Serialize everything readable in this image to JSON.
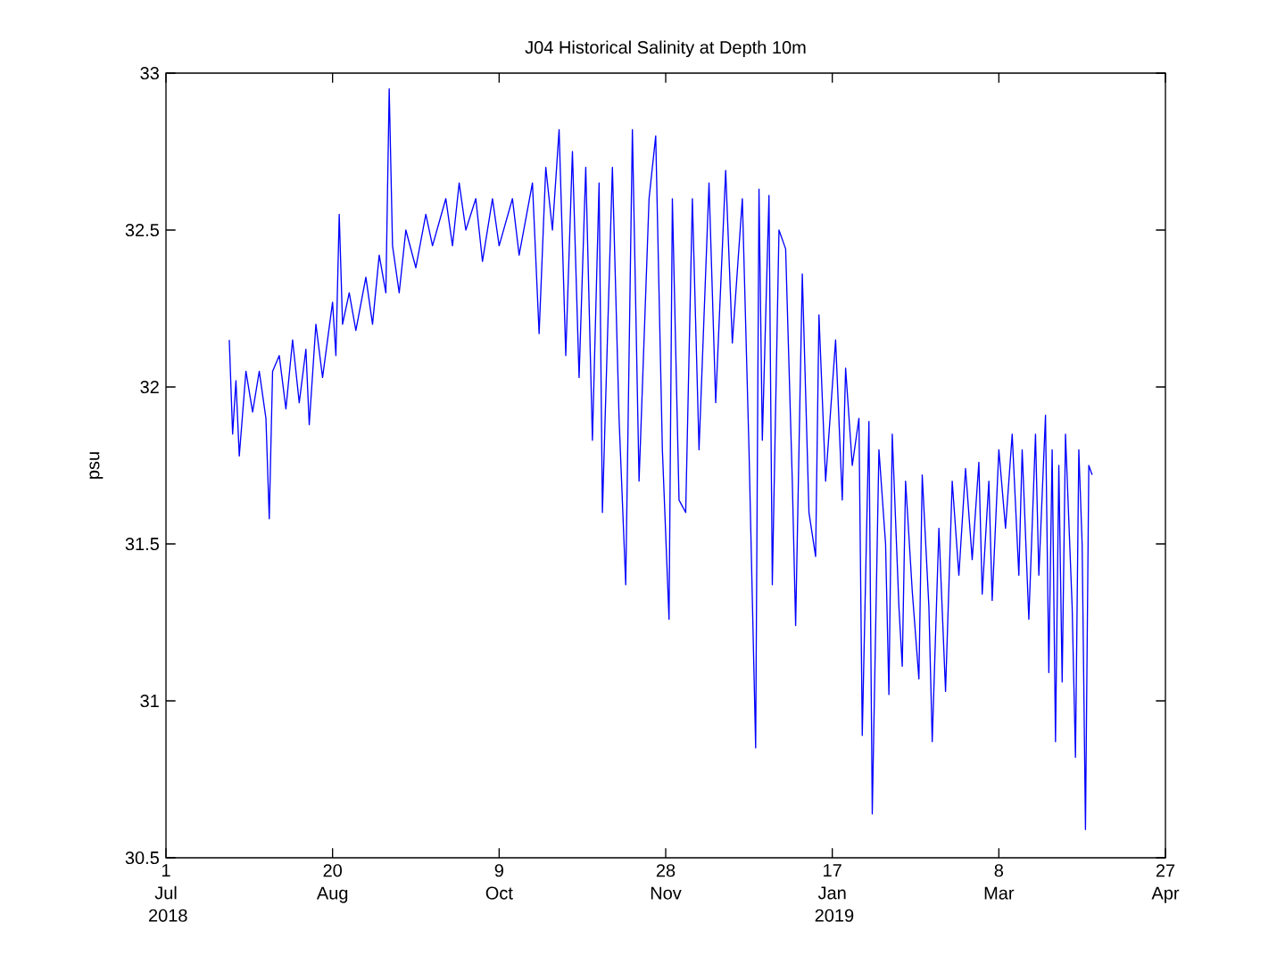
{
  "chart_data": {
    "type": "line",
    "title": "J04 Historical Salinity at Depth 10m",
    "ylabel": "psu",
    "xlim": [
      "2018-07-01",
      "2019-04-27"
    ],
    "xticks": [
      {
        "value": "2018-07-01",
        "label": "1 Jul 2018"
      },
      {
        "value": "2018-08-20",
        "label": "20 Aug"
      },
      {
        "value": "2018-10-09",
        "label": "9 Oct"
      },
      {
        "value": "2018-11-28",
        "label": "28 Nov"
      },
      {
        "value": "2019-01-17",
        "label": "17 Jan 2019"
      },
      {
        "value": "2019-03-08",
        "label": "8 Mar"
      },
      {
        "value": "2019-04-27",
        "label": "27 Apr"
      }
    ],
    "ylim": [
      30.5,
      33
    ],
    "yticks": [
      30.5,
      31,
      31.5,
      32,
      32.5,
      33
    ],
    "x": [
      "2018-07-20",
      "2018-07-21",
      "2018-07-22",
      "2018-07-23",
      "2018-07-25",
      "2018-07-27",
      "2018-07-29",
      "2018-07-31",
      "2018-08-01",
      "2018-08-02",
      "2018-08-04",
      "2018-08-06",
      "2018-08-08",
      "2018-08-10",
      "2018-08-12",
      "2018-08-13",
      "2018-08-15",
      "2018-08-17",
      "2018-08-20",
      "2018-08-21",
      "2018-08-22",
      "2018-08-23",
      "2018-08-25",
      "2018-08-27",
      "2018-08-30",
      "2018-09-01",
      "2018-09-03",
      "2018-09-05",
      "2018-09-06",
      "2018-09-07",
      "2018-09-09",
      "2018-09-11",
      "2018-09-14",
      "2018-09-17",
      "2018-09-19",
      "2018-09-23",
      "2018-09-25",
      "2018-09-27",
      "2018-09-29",
      "2018-10-02",
      "2018-10-04",
      "2018-10-07",
      "2018-10-09",
      "2018-10-13",
      "2018-10-15",
      "2018-10-19",
      "2018-10-21",
      "2018-10-23",
      "2018-10-25",
      "2018-10-27",
      "2018-10-29",
      "2018-10-31",
      "2018-11-02",
      "2018-11-04",
      "2018-11-06",
      "2018-11-08",
      "2018-11-09",
      "2018-11-12",
      "2018-11-14",
      "2018-11-16",
      "2018-11-18",
      "2018-11-20",
      "2018-11-23",
      "2018-11-25",
      "2018-11-27",
      "2018-11-29",
      "2018-11-30",
      "2018-12-02",
      "2018-12-04",
      "2018-12-06",
      "2018-12-08",
      "2018-12-11",
      "2018-12-13",
      "2018-12-16",
      "2018-12-18",
      "2018-12-21",
      "2018-12-23",
      "2018-12-25",
      "2018-12-26",
      "2018-12-27",
      "2018-12-29",
      "2018-12-30",
      "2019-01-01",
      "2019-01-03",
      "2019-01-05",
      "2019-01-06",
      "2019-01-08",
      "2019-01-10",
      "2019-01-12",
      "2019-01-13",
      "2019-01-15",
      "2019-01-18",
      "2019-01-20",
      "2019-01-21",
      "2019-01-23",
      "2019-01-25",
      "2019-01-26",
      "2019-01-28",
      "2019-01-29",
      "2019-01-31",
      "2019-02-02",
      "2019-02-03",
      "2019-02-04",
      "2019-02-06",
      "2019-02-07",
      "2019-02-08",
      "2019-02-10",
      "2019-02-12",
      "2019-02-13",
      "2019-02-15",
      "2019-02-16",
      "2019-02-18",
      "2019-02-20",
      "2019-02-22",
      "2019-02-24",
      "2019-02-26",
      "2019-02-28",
      "2019-03-02",
      "2019-03-03",
      "2019-03-05",
      "2019-03-06",
      "2019-03-08",
      "2019-03-10",
      "2019-03-12",
      "2019-03-14",
      "2019-03-15",
      "2019-03-17",
      "2019-03-19",
      "2019-03-20",
      "2019-03-22",
      "2019-03-23",
      "2019-03-24",
      "2019-03-25",
      "2019-03-26",
      "2019-03-27",
      "2019-03-28",
      "2019-03-30",
      "2019-03-31",
      "2019-04-01",
      "2019-04-02",
      "2019-04-03",
      "2019-04-04",
      "2019-04-05"
    ],
    "series": [
      {
        "color": "#0000ff",
        "values": [
          32.15,
          31.85,
          32.02,
          31.78,
          32.05,
          31.92,
          32.05,
          31.9,
          31.58,
          32.05,
          32.1,
          31.93,
          32.15,
          31.95,
          32.12,
          31.88,
          32.2,
          32.03,
          32.27,
          32.1,
          32.55,
          32.2,
          32.3,
          32.18,
          32.35,
          32.2,
          32.42,
          32.3,
          32.95,
          32.45,
          32.3,
          32.5,
          32.38,
          32.55,
          32.45,
          32.6,
          32.45,
          32.65,
          32.5,
          32.6,
          32.4,
          32.6,
          32.45,
          32.6,
          32.42,
          32.65,
          32.17,
          32.7,
          32.5,
          32.82,
          32.1,
          32.75,
          32.03,
          32.7,
          31.83,
          32.65,
          31.6,
          32.7,
          31.9,
          31.37,
          32.82,
          31.7,
          32.6,
          32.8,
          31.8,
          31.26,
          32.6,
          31.64,
          31.6,
          32.6,
          31.8,
          32.65,
          31.95,
          32.69,
          32.14,
          32.6,
          31.8,
          30.85,
          32.63,
          31.83,
          32.61,
          31.37,
          32.5,
          32.44,
          31.7,
          31.24,
          32.36,
          31.6,
          31.46,
          32.23,
          31.7,
          32.15,
          31.64,
          32.06,
          31.75,
          31.9,
          30.89,
          31.89,
          30.64,
          31.8,
          31.5,
          31.02,
          31.85,
          31.3,
          31.11,
          31.7,
          31.35,
          31.07,
          31.72,
          31.3,
          30.87,
          31.55,
          31.03,
          31.7,
          31.4,
          31.74,
          31.45,
          31.76,
          31.34,
          31.7,
          31.32,
          31.8,
          31.55,
          31.85,
          31.4,
          31.8,
          31.26,
          31.85,
          31.4,
          31.91,
          31.09,
          31.8,
          30.87,
          31.75,
          31.06,
          31.85,
          31.3,
          30.82,
          31.8,
          31.5,
          30.59,
          31.75,
          31.72
        ]
      }
    ]
  }
}
